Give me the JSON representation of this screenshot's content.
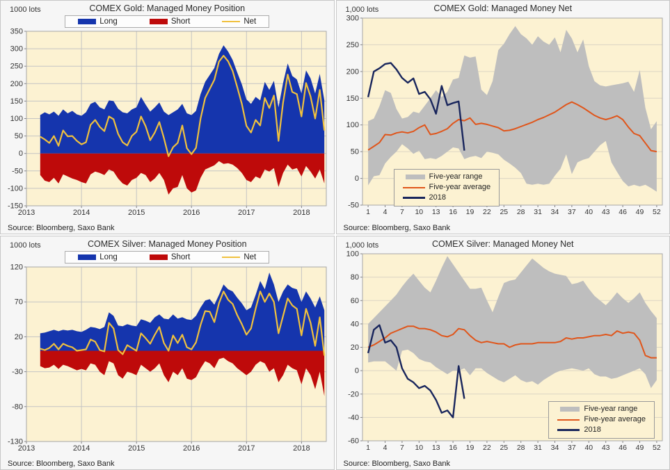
{
  "colors": {
    "long_blue": "#1535AD",
    "short_red": "#BE0A0A",
    "net_yellow": "#F0C13E",
    "range_gray": "#BEBEBE",
    "avg_orange": "#E0551A",
    "y2018_navy": "#18255C",
    "plot_bg": "#FCF2D2",
    "grid": "#C4C4C4",
    "grid_light": "#DBD5C4",
    "text": "#333333"
  },
  "panels": [
    {
      "units": "1000 lots",
      "title": "COMEX Gold: Managed Money Position",
      "source": "Source: Bloomberg, Saxo Bank",
      "legend": [
        {
          "label": "Long"
        },
        {
          "label": "Short"
        },
        {
          "label": "Net"
        }
      ]
    },
    {
      "units": "1,000 lots",
      "title": "COMEX Gold: Managed Money Net",
      "source": "Source: Bloomberg, Saxo Bank",
      "legend": [
        {
          "label": "Five-year range"
        },
        {
          "label": "Five-year average"
        },
        {
          "label": "2018"
        }
      ]
    },
    {
      "units": "1000 lots",
      "title": "COMEX Silver: Managed Money Position",
      "source": "Source: Bloomberg, Saxo Bank",
      "legend": [
        {
          "label": "Long"
        },
        {
          "label": "Short"
        },
        {
          "label": "Net"
        }
      ]
    },
    {
      "units": "1,000 lots",
      "title": "COMEX Silver: Managed Money Net",
      "source": "Source: Bloomberg, Saxo Bank",
      "legend": [
        {
          "label": "Five-year range"
        },
        {
          "label": "Five-year average"
        },
        {
          "label": "2018"
        }
      ]
    }
  ],
  "chart_data": [
    {
      "type": "area",
      "title": "COMEX Gold: Managed Money Position",
      "ylabel": "1000 lots",
      "x_start": 2013.25,
      "x_step": 0.0833,
      "xlim": [
        2013,
        2018.45
      ],
      "ylim": [
        -150,
        350
      ],
      "xticks": [
        2013,
        2014,
        2015,
        2016,
        2017,
        2018
      ],
      "yticks": [
        350,
        300,
        250,
        200,
        150,
        100,
        50,
        0,
        -50,
        -100,
        -150
      ],
      "grid_vertical": true,
      "legend_position": "top-center",
      "series": [
        {
          "name": "Long",
          "values": [
            110,
            118,
            112,
            120,
            108,
            126,
            115,
            122,
            112,
            108,
            118,
            142,
            148,
            132,
            126,
            152,
            150,
            128,
            118,
            115,
            126,
            132,
            162,
            140,
            120,
            132,
            146,
            120,
            110,
            118,
            126,
            142,
            115,
            110,
            122,
            170,
            205,
            225,
            245,
            285,
            310,
            292,
            268,
            232,
            198,
            155,
            142,
            162,
            152,
            205,
            182,
            208,
            132,
            202,
            258,
            222,
            212,
            172,
            238,
            215,
            172,
            228,
            152
          ]
        },
        {
          "name": "Short",
          "values": [
            -62,
            -78,
            -82,
            -70,
            -86,
            -60,
            -66,
            -72,
            -76,
            -82,
            -86,
            -60,
            -52,
            -56,
            -62,
            -46,
            -52,
            -72,
            -86,
            -92,
            -76,
            -70,
            -56,
            -62,
            -82,
            -72,
            -56,
            -76,
            -118,
            -100,
            -96,
            -62,
            -100,
            -112,
            -106,
            -70,
            -46,
            -40,
            -34,
            -22,
            -30,
            -28,
            -32,
            -42,
            -56,
            -76,
            -82,
            -66,
            -72,
            -46,
            -52,
            -42,
            -96,
            -56,
            -32,
            -46,
            -42,
            -66,
            -36,
            -52,
            -72,
            -46,
            -86
          ]
        },
        {
          "name": "Net",
          "values": [
            48,
            40,
            30,
            50,
            22,
            66,
            49,
            50,
            36,
            26,
            32,
            82,
            96,
            76,
            64,
            106,
            98,
            56,
            32,
            23,
            50,
            62,
            106,
            78,
            38,
            60,
            90,
            44,
            -8,
            18,
            30,
            80,
            15,
            -2,
            16,
            100,
            159,
            185,
            211,
            263,
            280,
            264,
            236,
            190,
            142,
            79,
            60,
            96,
            80,
            159,
            130,
            166,
            36,
            146,
            226,
            176,
            170,
            106,
            202,
            163,
            100,
            182,
            66
          ]
        }
      ]
    },
    {
      "type": "band",
      "title": "COMEX Gold: Managed Money Net",
      "ylabel": "1,000 lots",
      "xlim": [
        0,
        53
      ],
      "ylim": [
        -50,
        300
      ],
      "xticks": [
        1,
        4,
        7,
        10,
        13,
        16,
        19,
        22,
        25,
        28,
        31,
        34,
        37,
        40,
        43,
        46,
        49,
        52
      ],
      "yticks": [
        300,
        250,
        200,
        150,
        100,
        50,
        0,
        -50
      ],
      "grid_vertical": false,
      "legend_position": "bottom-left",
      "band_name": "Five-year range",
      "band_upper": [
        107,
        112,
        135,
        165,
        160,
        130,
        112,
        115,
        125,
        122,
        136,
        150,
        165,
        152,
        162,
        185,
        188,
        230,
        226,
        228,
        166,
        156,
        182,
        240,
        252,
        270,
        285,
        270,
        262,
        250,
        266,
        256,
        250,
        264,
        236,
        278,
        262,
        236,
        260,
        210,
        182,
        174,
        172,
        174,
        176,
        178,
        181,
        162,
        203,
        132,
        92,
        107
      ],
      "band_lower": [
        -13,
        4,
        6,
        28,
        40,
        50,
        64,
        56,
        46,
        52,
        36,
        38,
        36,
        42,
        50,
        58,
        56,
        36,
        40,
        42,
        38,
        50,
        48,
        45,
        35,
        28,
        20,
        10,
        -10,
        -12,
        -10,
        -12,
        -10,
        5,
        18,
        45,
        8,
        30,
        35,
        38,
        50,
        62,
        70,
        30,
        12,
        -5,
        -15,
        -12,
        -15,
        -12,
        -18,
        -25
      ],
      "series": [
        {
          "name": "Five-year average",
          "values": [
            53,
            60,
            67,
            82,
            81,
            85,
            87,
            85,
            88,
            95,
            100,
            82,
            84,
            88,
            93,
            103,
            110,
            108,
            113,
            101,
            103,
            101,
            98,
            95,
            89,
            90,
            93,
            97,
            101,
            105,
            110,
            114,
            119,
            124,
            131,
            138,
            143,
            138,
            132,
            125,
            118,
            113,
            110,
            113,
            117,
            110,
            96,
            84,
            80,
            66,
            52,
            50
          ]
        },
        {
          "name": "2018",
          "values": [
            152,
            200,
            206,
            214,
            216,
            204,
            188,
            179,
            187,
            158,
            162,
            148,
            121,
            173,
            137,
            141,
            144,
            52
          ]
        }
      ]
    },
    {
      "type": "area",
      "title": "COMEX Silver: Managed Money Position",
      "ylabel": "1000 lots",
      "x_start": 2013.25,
      "x_step": 0.0833,
      "xlim": [
        2013,
        2018.45
      ],
      "ylim": [
        -130,
        120
      ],
      "xticks": [
        2013,
        2014,
        2015,
        2016,
        2017,
        2018
      ],
      "yticks": [
        120,
        70,
        20,
        -30,
        -80,
        -130
      ],
      "grid_vertical": true,
      "legend_position": "top-center",
      "series": [
        {
          "name": "Long",
          "values": [
            25,
            26,
            28,
            30,
            28,
            30,
            29,
            30,
            28,
            27,
            30,
            34,
            33,
            31,
            34,
            55,
            50,
            36,
            35,
            38,
            36,
            35,
            45,
            43,
            40,
            48,
            52,
            46,
            45,
            52,
            46,
            48,
            45,
            44,
            50,
            62,
            72,
            74,
            66,
            80,
            95,
            88,
            85,
            76,
            68,
            58,
            62,
            80,
            100,
            88,
            112,
            95,
            70,
            85,
            95,
            90,
            88,
            70,
            85,
            75,
            62,
            78,
            58
          ]
        },
        {
          "name": "Short",
          "values": [
            -22,
            -25,
            -24,
            -20,
            -26,
            -20,
            -22,
            -25,
            -28,
            -26,
            -28,
            -18,
            -20,
            -30,
            -35,
            -15,
            -18,
            -35,
            -40,
            -30,
            -32,
            -35,
            -20,
            -25,
            -30,
            -25,
            -18,
            -35,
            -45,
            -30,
            -35,
            -25,
            -40,
            -42,
            -38,
            -25,
            -15,
            -18,
            -25,
            -12,
            -10,
            -15,
            -18,
            -25,
            -30,
            -35,
            -30,
            -20,
            -15,
            -18,
            -30,
            -25,
            -45,
            -35,
            -20,
            -25,
            -28,
            -48,
            -25,
            -35,
            -55,
            -30,
            -65
          ]
        },
        {
          "name": "Net",
          "values": [
            3,
            1,
            4,
            10,
            2,
            10,
            7,
            5,
            0,
            1,
            2,
            16,
            13,
            1,
            -1,
            40,
            32,
            1,
            -5,
            8,
            4,
            0,
            25,
            18,
            10,
            23,
            34,
            11,
            0,
            22,
            11,
            23,
            5,
            2,
            12,
            37,
            57,
            56,
            41,
            68,
            85,
            73,
            67,
            51,
            38,
            23,
            32,
            60,
            85,
            70,
            82,
            70,
            25,
            50,
            75,
            65,
            60,
            22,
            60,
            40,
            7,
            48,
            -7
          ]
        }
      ]
    },
    {
      "type": "band",
      "title": "COMEX Silver: Managed Money Net",
      "ylabel": "1,000 lots",
      "xlim": [
        0,
        53
      ],
      "ylim": [
        -60,
        100
      ],
      "xticks": [
        1,
        4,
        7,
        10,
        13,
        16,
        19,
        22,
        25,
        28,
        31,
        34,
        37,
        40,
        43,
        46,
        49,
        52
      ],
      "yticks": [
        100,
        80,
        60,
        40,
        20,
        0,
        -20,
        -40,
        -60
      ],
      "grid_vertical": false,
      "legend_position": "bottom-right",
      "band_name": "Five-year range",
      "band_upper": [
        40,
        45,
        50,
        55,
        60,
        65,
        72,
        78,
        83,
        77,
        71,
        67,
        77,
        88,
        98,
        91,
        84,
        77,
        70,
        70,
        71,
        60,
        50,
        63,
        75,
        77,
        78,
        84,
        90,
        96,
        92,
        88,
        85,
        83,
        82,
        81,
        74,
        75,
        77,
        70,
        64,
        60,
        56,
        61,
        67,
        62,
        58,
        62,
        67,
        58,
        51,
        45
      ],
      "band_lower": [
        7,
        8,
        8,
        8,
        4,
        0,
        17,
        18,
        15,
        10,
        8,
        7,
        3,
        0,
        -3,
        0,
        0,
        2,
        -4,
        2,
        2,
        -2,
        -5,
        -8,
        -10,
        -7,
        -4,
        -8,
        -10,
        -9,
        -12,
        -8,
        -5,
        -2,
        0,
        1,
        2,
        1,
        0,
        2,
        -3,
        -5,
        -5,
        -7,
        -6,
        -4,
        -2,
        0,
        2,
        -3,
        -15,
        -8
      ],
      "series": [
        {
          "name": "Five-year average",
          "values": [
            20,
            22,
            25,
            28,
            32,
            34,
            36,
            38,
            38,
            36,
            36,
            35,
            33,
            30,
            29,
            31,
            36,
            35,
            30,
            26,
            24,
            25,
            24,
            23,
            23,
            20,
            22,
            23,
            23,
            23,
            24,
            24,
            24,
            24,
            25,
            28,
            27,
            28,
            28,
            29,
            30,
            30,
            31,
            30,
            34,
            32,
            33,
            32,
            26,
            13,
            11,
            11
          ]
        },
        {
          "name": "2018",
          "values": [
            15,
            35,
            39,
            24,
            26,
            20,
            2,
            -7,
            -10,
            -15,
            -13,
            -17,
            -25,
            -36,
            -34,
            -40,
            4,
            -24
          ]
        }
      ]
    }
  ]
}
